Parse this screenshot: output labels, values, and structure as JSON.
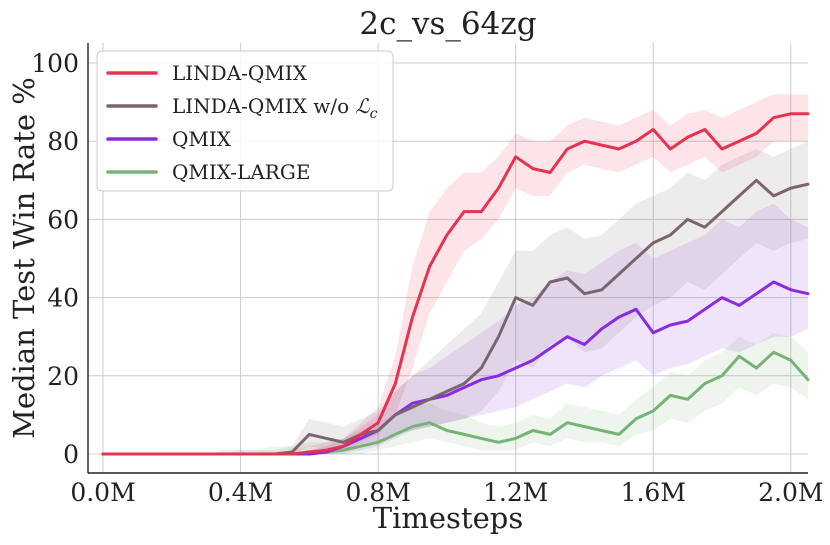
{
  "chart_data": {
    "type": "line",
    "title": "2c_vs_64zg",
    "xlabel": "Timesteps",
    "ylabel": "Median Test Win Rate %",
    "xlim": [
      0,
      2.05
    ],
    "ylim": [
      -5,
      105
    ],
    "xticks": [
      0,
      0.4,
      0.8,
      1.2,
      1.6,
      2.0
    ],
    "xtick_labels": [
      "0.0M",
      "0.4M",
      "0.8M",
      "1.2M",
      "1.6M",
      "2.0M"
    ],
    "yticks": [
      0,
      20,
      40,
      60,
      80,
      100
    ],
    "ytick_labels": [
      "0",
      "20",
      "40",
      "60",
      "80",
      "100"
    ],
    "grid": true,
    "legend_position": "top-left",
    "x": [
      0,
      0.05,
      0.1,
      0.15,
      0.2,
      0.25,
      0.3,
      0.35,
      0.4,
      0.45,
      0.5,
      0.55,
      0.6,
      0.65,
      0.7,
      0.75,
      0.8,
      0.85,
      0.9,
      0.95,
      1.0,
      1.05,
      1.1,
      1.15,
      1.2,
      1.25,
      1.3,
      1.35,
      1.4,
      1.45,
      1.5,
      1.55,
      1.6,
      1.65,
      1.7,
      1.75,
      1.8,
      1.85,
      1.9,
      1.95,
      2.0,
      2.05
    ],
    "series": [
      {
        "name": "LINDA-QMIX",
        "legend_label": "LINDA-QMIX",
        "color": "#e8304f",
        "values": [
          0,
          0,
          0,
          0,
          0,
          0,
          0,
          0,
          0,
          0,
          0,
          0,
          0.5,
          1,
          2,
          5,
          8,
          18,
          35,
          48,
          56,
          62,
          62,
          68,
          76,
          73,
          72,
          78,
          80,
          79,
          78,
          80,
          83,
          78,
          81,
          83,
          78,
          80,
          82,
          86,
          87,
          87
        ],
        "lower": [
          0,
          0,
          0,
          0,
          0,
          0,
          0,
          0,
          0,
          0,
          0,
          0,
          0,
          0,
          1,
          3,
          5,
          10,
          22,
          36,
          44,
          52,
          55,
          60,
          68,
          66,
          66,
          72,
          74,
          73,
          72,
          74,
          76,
          72,
          74,
          76,
          72,
          74,
          76,
          80,
          80,
          80
        ],
        "upper": [
          0,
          0,
          0,
          0,
          0,
          0,
          0,
          0,
          0,
          0,
          0,
          1,
          2,
          3,
          4,
          8,
          12,
          25,
          48,
          62,
          68,
          72,
          72,
          76,
          82,
          80,
          80,
          84,
          86,
          85,
          84,
          86,
          88,
          84,
          87,
          88,
          86,
          88,
          90,
          92,
          92,
          92
        ]
      },
      {
        "name": "LINDA-QMIX w/o Lc",
        "legend_label": "LINDA-QMIX w/o",
        "legend_math_base": "ℒ",
        "legend_math_sub": "c",
        "color": "#7a6470",
        "values": [
          0,
          0,
          0,
          0,
          0,
          0,
          0,
          0,
          0,
          0,
          0,
          0.5,
          5,
          4,
          3,
          5,
          6,
          10,
          12,
          14,
          16,
          18,
          22,
          30,
          40,
          38,
          44,
          45,
          41,
          42,
          46,
          50,
          54,
          56,
          60,
          58,
          62,
          66,
          70,
          66,
          68,
          69
        ],
        "lower": [
          0,
          0,
          0,
          0,
          0,
          0,
          0,
          0,
          0,
          0,
          0,
          0,
          2,
          1,
          1,
          2,
          3,
          5,
          6,
          7,
          8,
          9,
          11,
          16,
          24,
          22,
          28,
          30,
          26,
          27,
          31,
          35,
          38,
          40,
          44,
          42,
          46,
          50,
          54,
          52,
          54,
          55
        ],
        "upper": [
          0,
          0,
          0,
          0,
          0,
          0,
          0,
          1,
          1,
          1,
          1,
          2,
          9,
          8,
          7,
          9,
          11,
          16,
          20,
          24,
          28,
          32,
          36,
          44,
          52,
          52,
          56,
          58,
          55,
          56,
          60,
          64,
          66,
          68,
          72,
          70,
          74,
          76,
          78,
          76,
          78,
          80
        ]
      },
      {
        "name": "QMIX",
        "legend_label": "QMIX",
        "color": "#8a2be2",
        "values": [
          0,
          0,
          0,
          0,
          0,
          0,
          0,
          0,
          0,
          0,
          0,
          0,
          0,
          0.5,
          2,
          4,
          6,
          10,
          13,
          14,
          15,
          17,
          19,
          20,
          22,
          24,
          27,
          30,
          28,
          32,
          35,
          37,
          31,
          33,
          34,
          37,
          40,
          38,
          41,
          44,
          42,
          41
        ],
        "lower": [
          0,
          0,
          0,
          0,
          0,
          0,
          0,
          0,
          0,
          0,
          0,
          0,
          0,
          0,
          0,
          1,
          2,
          4,
          6,
          7,
          8,
          9,
          10,
          11,
          12,
          14,
          16,
          18,
          17,
          20,
          22,
          24,
          20,
          22,
          23,
          25,
          27,
          26,
          28,
          30,
          30,
          32
        ],
        "upper": [
          0,
          0,
          0,
          0,
          0,
          0,
          0,
          0,
          0,
          0,
          0,
          0,
          1,
          2,
          4,
          7,
          10,
          16,
          20,
          22,
          25,
          28,
          31,
          34,
          38,
          40,
          44,
          47,
          46,
          49,
          52,
          54,
          50,
          52,
          54,
          56,
          60,
          58,
          62,
          64,
          60,
          58
        ]
      },
      {
        "name": "QMIX-LARGE",
        "legend_label": "QMIX-LARGE",
        "color": "#77b377",
        "values": [
          0,
          0,
          0,
          0,
          0,
          0,
          0,
          0,
          0,
          0,
          0,
          0,
          0,
          0.5,
          1,
          2,
          3,
          5,
          7,
          8,
          6,
          5,
          4,
          3,
          4,
          6,
          5,
          8,
          7,
          6,
          5,
          9,
          11,
          15,
          14,
          18,
          20,
          25,
          22,
          26,
          24,
          19
        ],
        "lower": [
          0,
          0,
          0,
          0,
          0,
          0,
          0,
          0,
          0,
          0,
          0,
          0,
          0,
          0,
          0,
          0,
          1,
          2,
          3,
          4,
          3,
          2,
          1,
          1,
          1,
          3,
          2,
          4,
          3,
          3,
          2,
          5,
          6,
          9,
          8,
          11,
          13,
          17,
          15,
          18,
          17,
          14
        ],
        "upper": [
          0,
          0,
          0,
          0,
          0,
          0,
          0,
          0,
          1,
          1,
          2,
          2,
          3,
          3,
          4,
          6,
          8,
          10,
          12,
          13,
          11,
          10,
          8,
          7,
          8,
          10,
          9,
          13,
          12,
          11,
          10,
          14,
          17,
          21,
          20,
          24,
          26,
          30,
          28,
          31,
          30,
          26
        ]
      }
    ]
  }
}
